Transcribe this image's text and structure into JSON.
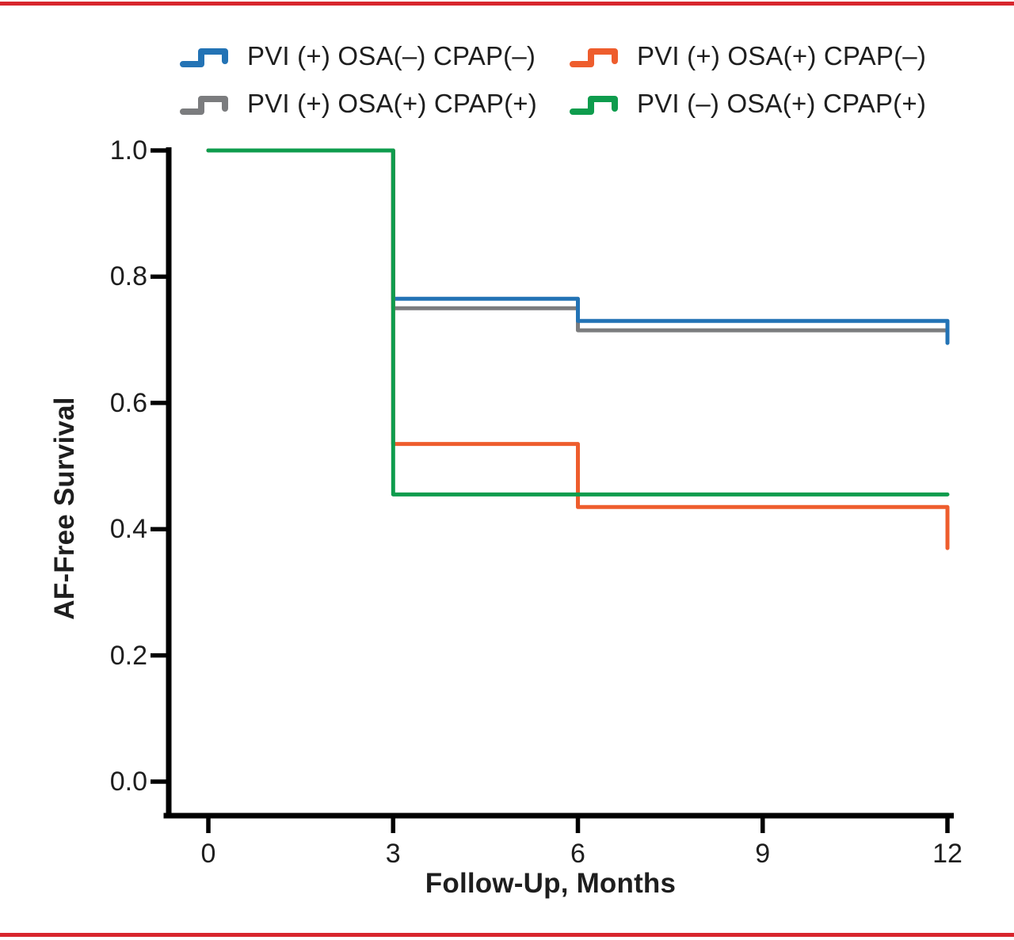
{
  "page": {
    "background": "#ffffff",
    "accent_red": "#d8262d",
    "axis_color": "#000000",
    "text_color": "#1e1e1e"
  },
  "legend": {
    "position": "top",
    "items": [
      {
        "label": "PVI (+) OSA(–) CPAP(–)",
        "color": "#2373b5",
        "series_key": "pvi-pos-osa-neg-cpap-neg"
      },
      {
        "label": "PVI (+) OSA(+) CPAP(–)",
        "color": "#ee5d2d",
        "series_key": "pvi-pos-osa-pos-cpap-neg"
      },
      {
        "label": "PVI (+) OSA(+) CPAP(+)",
        "color": "#7b7c7e",
        "series_key": "pvi-pos-osa-pos-cpap-pos"
      },
      {
        "label": "PVI (–) OSA(+) CPAP(+)",
        "color": "#0e9c4d",
        "series_key": "pvi-neg-osa-pos-cpap-pos"
      }
    ]
  },
  "chart_data": {
    "type": "line",
    "variant": "kaplan-meier-step",
    "xlabel": "Follow-Up, Months",
    "ylabel": "AF-Free Survival",
    "xlim": [
      0,
      12
    ],
    "ylim": [
      0.0,
      1.0
    ],
    "xticks": [
      0,
      3,
      6,
      9,
      12
    ],
    "xtick_labels": [
      "0",
      "3",
      "6",
      "9",
      "12"
    ],
    "yticks": [
      1.0,
      0.8,
      0.6,
      0.4,
      0.2,
      0.0
    ],
    "ytick_labels": [
      "1.0",
      "0.8",
      "0.6",
      "0.4",
      "0.2",
      "0.0"
    ],
    "grid": false,
    "legend_position": "top",
    "series": [
      {
        "name": "PVI (+) OSA(+) CPAP(+)",
        "key": "pvi-pos-osa-pos-cpap-pos",
        "color": "#7b7c7e",
        "points": [
          [
            0,
            1.0
          ],
          [
            3,
            1.0
          ],
          [
            3,
            0.75
          ],
          [
            6,
            0.75
          ],
          [
            6,
            0.715
          ],
          [
            12,
            0.715
          ]
        ]
      },
      {
        "name": "PVI (+) OSA(–) CPAP(–)",
        "key": "pvi-pos-osa-neg-cpap-neg",
        "color": "#2373b5",
        "points": [
          [
            0,
            1.0
          ],
          [
            3,
            1.0
          ],
          [
            3,
            0.765
          ],
          [
            6,
            0.765
          ],
          [
            6,
            0.73
          ],
          [
            12,
            0.73
          ],
          [
            12,
            0.695
          ]
        ]
      },
      {
        "name": "PVI (+) OSA(+) CPAP(–)",
        "key": "pvi-pos-osa-pos-cpap-neg",
        "color": "#ee5d2d",
        "points": [
          [
            0,
            1.0
          ],
          [
            3,
            1.0
          ],
          [
            3,
            0.535
          ],
          [
            6,
            0.535
          ],
          [
            6,
            0.435
          ],
          [
            12,
            0.435
          ],
          [
            12,
            0.37
          ]
        ]
      },
      {
        "name": "PVI (–) OSA(+) CPAP(+)",
        "key": "pvi-neg-osa-pos-cpap-pos",
        "color": "#0e9c4d",
        "points": [
          [
            0,
            1.0
          ],
          [
            3,
            1.0
          ],
          [
            3,
            0.455
          ],
          [
            12,
            0.455
          ]
        ]
      }
    ]
  }
}
